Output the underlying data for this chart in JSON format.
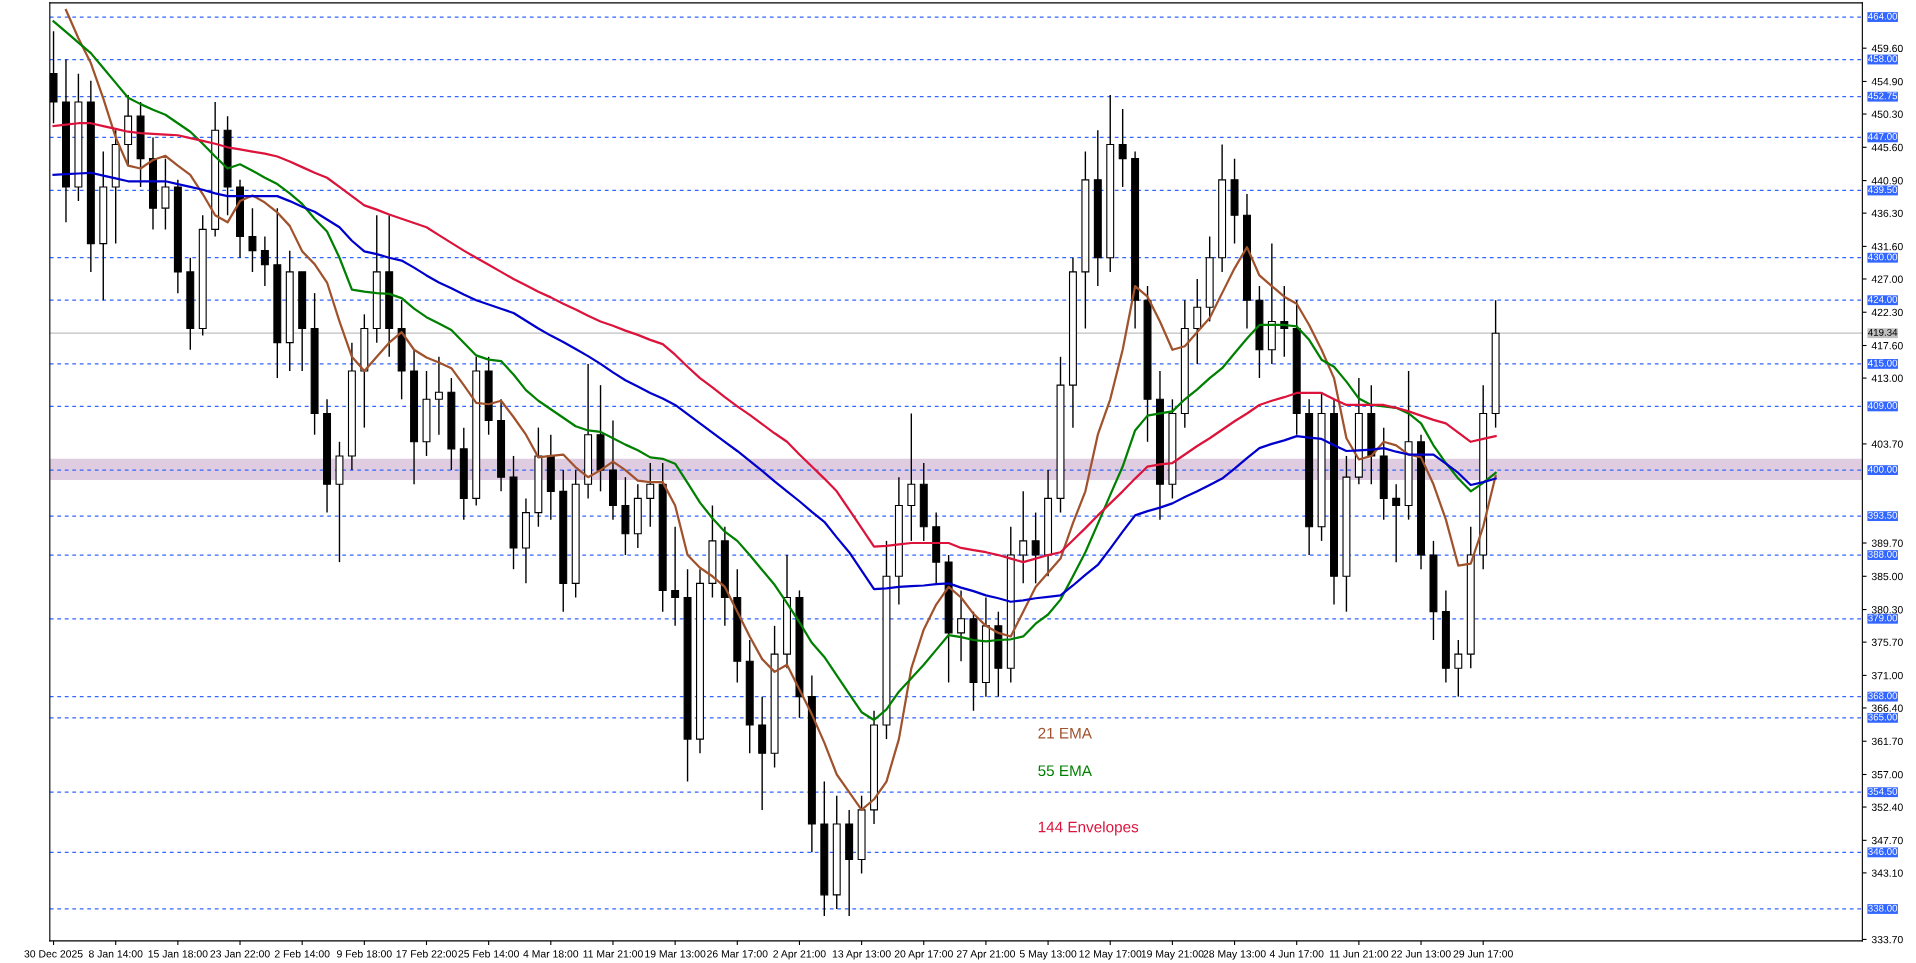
{
  "chart_data": {
    "type": "candlestick",
    "categories": [
      "30 Dec 2025",
      null,
      null,
      null,
      null,
      "8 Jan 14:00",
      null,
      null,
      null,
      null,
      "15 Jan 18:00",
      null,
      null,
      null,
      null,
      "23 Jan 22:00",
      null,
      null,
      null,
      null,
      "2 Feb 14:00",
      null,
      null,
      null,
      null,
      "9 Feb 18:00",
      null,
      null,
      null,
      null,
      "17 Feb 22:00",
      null,
      null,
      null,
      null,
      "25 Feb 14:00",
      null,
      null,
      null,
      null,
      "4 Mar 18:00",
      null,
      null,
      null,
      null,
      "11 Mar 21:00",
      null,
      null,
      null,
      null,
      "19 Mar 13:00",
      null,
      null,
      null,
      null,
      "26 Mar 17:00",
      null,
      null,
      null,
      null,
      "2 Apr 21:00",
      null,
      null,
      null,
      null,
      "13 Apr 13:00",
      null,
      null,
      null,
      null,
      "20 Apr 17:00",
      null,
      null,
      null,
      null,
      "27 Apr 21:00",
      null,
      null,
      null,
      null,
      "5 May 13:00",
      null,
      null,
      null,
      null,
      "12 May 17:00",
      null,
      null,
      null,
      null,
      "19 May 21:00",
      null,
      null,
      null,
      null,
      "28 May 13:00",
      null,
      null,
      null,
      null,
      "4 Jun 17:00",
      null,
      null,
      null,
      null,
      "11 Jun 21:00",
      null,
      null,
      null,
      null,
      "22 Jun 13:00",
      null,
      null,
      null,
      null,
      "29 Jun 17:00",
      null,
      null,
      null,
      null,
      null,
      null,
      null,
      null,
      null,
      null,
      null,
      null,
      null,
      null,
      null,
      null,
      null,
      null,
      null,
      null,
      null,
      null,
      null,
      null,
      null,
      null,
      null,
      null,
      null,
      null
    ],
    "ohlc": [
      [
        456,
        462,
        449,
        452
      ],
      [
        452,
        458,
        435,
        440
      ],
      [
        440,
        456,
        438,
        452
      ],
      [
        452,
        455,
        428,
        432
      ],
      [
        432,
        445,
        424,
        440
      ],
      [
        440,
        448,
        432,
        446
      ],
      [
        446,
        453,
        443,
        450
      ],
      [
        450,
        452,
        440,
        444
      ],
      [
        444,
        447,
        434,
        437
      ],
      [
        437,
        444,
        434,
        440
      ],
      [
        440,
        441,
        425,
        428
      ],
      [
        428,
        430,
        417,
        420
      ],
      [
        420,
        436,
        419,
        434
      ],
      [
        434,
        452,
        433,
        448
      ],
      [
        448,
        450,
        436,
        440
      ],
      [
        440,
        441,
        430,
        433
      ],
      [
        433,
        437,
        428,
        431
      ],
      [
        431,
        433,
        426,
        429
      ],
      [
        429,
        437,
        413,
        418
      ],
      [
        418,
        431,
        414,
        428
      ],
      [
        428,
        428,
        414,
        420
      ],
      [
        420,
        425,
        405,
        408
      ],
      [
        408,
        410,
        394,
        398
      ],
      [
        398,
        404,
        387,
        402
      ],
      [
        402,
        418,
        400,
        414
      ],
      [
        414,
        422,
        406,
        420
      ],
      [
        420,
        436,
        418,
        428
      ],
      [
        428,
        436,
        416,
        420
      ],
      [
        420,
        424,
        410,
        414
      ],
      [
        414,
        417,
        398,
        404
      ],
      [
        404,
        414,
        402,
        410
      ],
      [
        410,
        416,
        405,
        411
      ],
      [
        411,
        413,
        400,
        403
      ],
      [
        403,
        406,
        393,
        396
      ],
      [
        396,
        416,
        395,
        414
      ],
      [
        414,
        416,
        405,
        407
      ],
      [
        407,
        410,
        397,
        399
      ],
      [
        399,
        402,
        386,
        389
      ],
      [
        389,
        396,
        384,
        394
      ],
      [
        394,
        406,
        392,
        402
      ],
      [
        402,
        405,
        393,
        397
      ],
      [
        397,
        400,
        380,
        384
      ],
      [
        384,
        400,
        382,
        398
      ],
      [
        398,
        415,
        396,
        405
      ],
      [
        405,
        412,
        397,
        400
      ],
      [
        400,
        407,
        393,
        395
      ],
      [
        395,
        399,
        388,
        391
      ],
      [
        391,
        398,
        389,
        396
      ],
      [
        396,
        401,
        392,
        398
      ],
      [
        398,
        401,
        380,
        383
      ],
      [
        383,
        392,
        378,
        382
      ],
      [
        382,
        386,
        356,
        362
      ],
      [
        362,
        386,
        360,
        384
      ],
      [
        384,
        395,
        382,
        390
      ],
      [
        390,
        392,
        378,
        382
      ],
      [
        382,
        386,
        370,
        373
      ],
      [
        373,
        376,
        360,
        364
      ],
      [
        364,
        368,
        352,
        360
      ],
      [
        360,
        378,
        358,
        374
      ],
      [
        374,
        388,
        372,
        382
      ],
      [
        382,
        383,
        365,
        368
      ],
      [
        368,
        371,
        346,
        350
      ],
      [
        350,
        356,
        337,
        340
      ],
      [
        340,
        354,
        338,
        350
      ],
      [
        350,
        352,
        337,
        345
      ],
      [
        345,
        354,
        343,
        352
      ],
      [
        352,
        366,
        350,
        364
      ],
      [
        364,
        390,
        362,
        385
      ],
      [
        385,
        399,
        381,
        395
      ],
      [
        395,
        408,
        390,
        398
      ],
      [
        398,
        401,
        390,
        392
      ],
      [
        392,
        394,
        384,
        387
      ],
      [
        387,
        388,
        370,
        377
      ],
      [
        377,
        383,
        373,
        379
      ],
      [
        379,
        380,
        366,
        370
      ],
      [
        370,
        382,
        368,
        378
      ],
      [
        378,
        380,
        368,
        372
      ],
      [
        372,
        392,
        370,
        388
      ],
      [
        388,
        397,
        384,
        390
      ],
      [
        390,
        394,
        384,
        388
      ],
      [
        388,
        400,
        385,
        396
      ],
      [
        396,
        416,
        394,
        412
      ],
      [
        412,
        430,
        406,
        428
      ],
      [
        428,
        445,
        420,
        441
      ],
      [
        441,
        448,
        426,
        430
      ],
      [
        430,
        453,
        428,
        446
      ],
      [
        446,
        451,
        440,
        444
      ],
      [
        444,
        445,
        420,
        424
      ],
      [
        424,
        426,
        404,
        410
      ],
      [
        410,
        414,
        393,
        398
      ],
      [
        398,
        410,
        396,
        408
      ],
      [
        408,
        424,
        406,
        420
      ],
      [
        420,
        427,
        415,
        423
      ],
      [
        423,
        433,
        421,
        430
      ],
      [
        430,
        446,
        428,
        441
      ],
      [
        441,
        444,
        432,
        436
      ],
      [
        436,
        439,
        420,
        424
      ],
      [
        424,
        426,
        413,
        417
      ],
      [
        417,
        432,
        415,
        421
      ],
      [
        421,
        426,
        416,
        420
      ],
      [
        420,
        424,
        405,
        408
      ],
      [
        408,
        410,
        388,
        392
      ],
      [
        392,
        411,
        390,
        408
      ],
      [
        408,
        410,
        381,
        385
      ],
      [
        385,
        402,
        380,
        399
      ],
      [
        399,
        413,
        398,
        408
      ],
      [
        408,
        412,
        398,
        402
      ],
      [
        402,
        406,
        393,
        396
      ],
      [
        396,
        398,
        387,
        395
      ],
      [
        395,
        414,
        393,
        404
      ],
      [
        404,
        405,
        386,
        388
      ],
      [
        388,
        390,
        376,
        380
      ],
      [
        380,
        383,
        370,
        372
      ],
      [
        372,
        376,
        368,
        374
      ],
      [
        374,
        392,
        372,
        388
      ],
      [
        388,
        412,
        386,
        408
      ],
      [
        408,
        424,
        406,
        419.34
      ],
      null,
      null,
      null,
      null,
      null,
      null,
      null,
      null,
      null,
      null,
      null,
      null,
      null,
      null,
      null,
      null,
      null,
      null,
      null,
      null,
      null,
      null,
      null,
      null,
      null,
      null,
      null,
      null,
      null
    ],
    "series": [
      {
        "type": "line",
        "name": "21 EMA",
        "color": "#a0522d",
        "values": [
          null,
          465,
          461,
          457.5,
          452.5,
          447,
          443,
          442.6,
          443.8,
          444.4,
          443,
          441.7,
          439,
          436,
          435,
          438,
          438.8,
          437.8,
          436.4,
          434.5,
          430.9,
          429.1,
          426.5,
          421,
          416,
          414,
          416,
          418,
          419.5,
          417,
          415.9,
          415.2,
          414.4,
          412,
          409.5,
          409.3,
          409.8,
          407.5,
          405,
          401.8,
          402,
          402.2,
          400.4,
          399,
          400,
          401.2,
          400,
          398.5,
          398.3,
          398.3,
          395,
          388,
          386.2,
          385,
          383.5,
          380,
          376.5,
          373.3,
          371.5,
          372.5,
          369,
          365.5,
          361.5,
          357,
          354.5,
          352,
          353.5,
          356,
          362,
          372,
          377.5,
          381,
          383.5,
          382,
          379.7,
          378,
          377,
          376.5,
          380,
          383.5,
          385.5,
          387.5,
          392.5,
          397,
          405,
          410,
          417,
          426,
          424.5,
          421,
          417,
          417.5,
          419.5,
          421.5,
          425,
          428.5,
          431.5,
          427.5,
          426,
          424.5,
          423.5,
          420.5,
          417,
          413,
          404.5,
          401.5,
          402,
          404,
          403.5,
          402.2,
          401.8,
          398,
          393,
          386.5,
          386.8,
          392,
          399.2,
          null,
          null,
          null,
          null,
          null,
          null,
          null,
          null,
          null,
          null,
          null,
          null,
          null,
          null,
          null,
          null,
          null,
          null,
          null,
          null,
          null,
          null,
          null,
          null,
          null,
          null,
          null,
          null,
          null
        ]
      },
      {
        "type": "line",
        "name": "55 EMA",
        "color": "#008000",
        "values": [
          463.4,
          461.9,
          460.4,
          458.9,
          456.8,
          454.7,
          452.6,
          451.7,
          450.9,
          450.2,
          449,
          447.8,
          446.1,
          444.3,
          442.6,
          443.2,
          442.3,
          441.3,
          440.4,
          439.1,
          437.6,
          435.5,
          433.7,
          430,
          425.5,
          425.2,
          425,
          424.9,
          424.3,
          422.8,
          421.6,
          420.7,
          419.8,
          418,
          416.2,
          415.6,
          415.4,
          413.5,
          411.3,
          409.8,
          408.6,
          407.4,
          406.2,
          405.6,
          405.4,
          404.5,
          403.6,
          402.8,
          401.8,
          401.6,
          400.9,
          398.2,
          395.4,
          393.2,
          391.3,
          390,
          388,
          385.9,
          383.8,
          381.2,
          378.5,
          375.6,
          373.6,
          371,
          368.4,
          365.8,
          364.7,
          366.2,
          368.7,
          370.6,
          372.5,
          374.6,
          376.7,
          376.4,
          376,
          375.8,
          376,
          376.1,
          376.5,
          378.3,
          379.6,
          381.7,
          385,
          388.4,
          392.4,
          396.5,
          400.5,
          405.6,
          407.7,
          408,
          408.3,
          410,
          411.4,
          413,
          414.4,
          416.5,
          418.6,
          420.5,
          420.5,
          420.5,
          420.3,
          418.4,
          415.6,
          414.6,
          412.5,
          410.1,
          409.2,
          409,
          408.8,
          408,
          406.6,
          403.5,
          401,
          398.8,
          397,
          398.2,
          399.6,
          null,
          null,
          null,
          null,
          null,
          null,
          null,
          null,
          null,
          null,
          null,
          null,
          null,
          null,
          null,
          null,
          null,
          null,
          null,
          null,
          null,
          null,
          null,
          null,
          null,
          null,
          null,
          null,
          null
        ]
      },
      {
        "type": "line",
        "color": "#0000cd",
        "values": [
          441.7,
          441.8,
          441.9,
          442,
          441.6,
          441.2,
          440.8,
          440.8,
          440.8,
          440.8,
          440.4,
          440,
          439.6,
          439.1,
          438.7,
          438.7,
          438.7,
          438.7,
          438.7,
          438,
          437.2,
          436.5,
          435.4,
          434.3,
          432.4,
          430.9,
          430.5,
          430,
          429.6,
          428.6,
          427.5,
          426.5,
          425.7,
          424.8,
          424,
          423.4,
          422.8,
          422.2,
          421.1,
          420,
          419,
          418.1,
          417.1,
          416.1,
          415,
          413.8,
          412.7,
          411.8,
          410.9,
          410.1,
          409.2,
          407.9,
          406.6,
          405.3,
          404,
          402.7,
          401.3,
          399.9,
          398.4,
          397,
          395.6,
          394.1,
          392.7,
          390.5,
          388.4,
          385.8,
          383.2,
          383.3,
          383.5,
          383.6,
          383.7,
          383.9,
          384,
          383.4,
          382.9,
          382.3,
          381.9,
          381.4,
          381.6,
          381.9,
          382.1,
          382.3,
          383.7,
          385.2,
          386.6,
          388.9,
          391.3,
          393.6,
          394.2,
          394.7,
          395.3,
          396.2,
          397,
          397.9,
          398.8,
          400.2,
          401.7,
          403.1,
          403.7,
          404.2,
          404.8,
          404.6,
          404.4,
          403.5,
          402.7,
          402.8,
          402.9,
          403.1,
          402.6,
          402.2,
          402.2,
          402.2,
          400.9,
          399.6,
          397.9,
          398.3,
          398.8,
          null,
          null,
          null,
          null,
          null,
          null,
          null,
          null,
          null,
          null,
          null,
          null,
          null,
          null,
          null,
          null,
          null,
          null,
          null,
          null,
          null,
          null,
          null,
          null,
          null,
          null,
          null,
          null,
          null
        ]
      },
      {
        "type": "line",
        "name": "144 Envelopes",
        "color": "#dc143c",
        "values": [
          448.6,
          448.8,
          449,
          449,
          448.6,
          448.2,
          447.8,
          447.6,
          447.5,
          447.4,
          447.3,
          446.9,
          446.5,
          446.1,
          445.6,
          445.3,
          445,
          444.7,
          444.3,
          443.6,
          442.8,
          442,
          441.3,
          440,
          438.7,
          437.4,
          436.8,
          436.1,
          435.5,
          434.9,
          434.3,
          433.2,
          432.1,
          431,
          430,
          429,
          428,
          427,
          426.1,
          425.2,
          424.4,
          423.5,
          422.7,
          421.8,
          421,
          420.4,
          419.7,
          419.1,
          418.4,
          417.8,
          416.3,
          414.6,
          413,
          411.7,
          410.3,
          409,
          407.8,
          406.5,
          405.2,
          404,
          402.2,
          400.5,
          398.8,
          397,
          394.4,
          391.8,
          389.2,
          389.3,
          389.5,
          389.7,
          389.7,
          389.7,
          389.7,
          389,
          388.7,
          388.4,
          388,
          387.5,
          387,
          387.5,
          388,
          388.4,
          390.1,
          391.8,
          393.6,
          395.3,
          397,
          398.8,
          400.5,
          400.8,
          401,
          402.2,
          403.4,
          404.5,
          405.7,
          406.9,
          408,
          409.2,
          409.8,
          410.3,
          410.9,
          410.9,
          410.9,
          410,
          409.2,
          409.2,
          409.2,
          409.2,
          408.8,
          408.3,
          407.7,
          407.1,
          406.6,
          405.3,
          404,
          404.4,
          404.8,
          null,
          null,
          null,
          null,
          null,
          null,
          null,
          null,
          null,
          null,
          null,
          null,
          null,
          null,
          null,
          null,
          null,
          null,
          null,
          null,
          null,
          null,
          null,
          null,
          null,
          null,
          null,
          null,
          null
        ]
      }
    ],
    "ylim": [
      333.5,
      466.0
    ],
    "yticks": [
      {
        "value": 459.6,
        "label": "459.60"
      },
      {
        "value": 454.9,
        "label": "454.90"
      },
      {
        "value": 450.3,
        "label": "450.30"
      },
      {
        "value": 445.6,
        "label": "445.60"
      },
      {
        "value": 440.9,
        "label": "440.90"
      },
      {
        "value": 436.3,
        "label": "436.30"
      },
      {
        "value": 431.6,
        "label": "431.60"
      },
      {
        "value": 427,
        "label": "427.00"
      },
      {
        "value": 422.3,
        "label": "422.30"
      },
      {
        "value": 417.6,
        "label": "417.60"
      },
      {
        "value": 413,
        "label": "413.00"
      },
      {
        "value": 403.7,
        "label": "403.70"
      },
      {
        "value": 389.7,
        "label": "389.70"
      },
      {
        "value": 385,
        "label": "385.00"
      },
      {
        "value": 380.3,
        "label": "380.30"
      },
      {
        "value": 375.7,
        "label": "375.70"
      },
      {
        "value": 371,
        "label": "371.00"
      },
      {
        "value": 366.4,
        "label": "366.40"
      },
      {
        "value": 361.7,
        "label": "361.70"
      },
      {
        "value": 357,
        "label": "357.00"
      },
      {
        "value": 352.4,
        "label": "352.40"
      },
      {
        "value": 347.7,
        "label": "347.70"
      },
      {
        "value": 343.1,
        "label": "343.10"
      },
      {
        "value": 333.7,
        "label": "333.70"
      }
    ],
    "ref_lines": [
      {
        "axis": "y",
        "value": 464,
        "label": "464.00",
        "color": "#3366ff",
        "line_style": "dashed"
      },
      {
        "axis": "y",
        "value": 458,
        "label": "458.00",
        "color": "#3366ff",
        "line_style": "dashed"
      },
      {
        "axis": "y",
        "value": 452.75,
        "label": "452.75",
        "color": "#3366ff",
        "line_style": "dashed"
      },
      {
        "axis": "y",
        "value": 447,
        "label": "447.00",
        "color": "#3366ff",
        "line_style": "dashed"
      },
      {
        "axis": "y",
        "value": 439.5,
        "label": "439.50",
        "color": "#3366ff",
        "line_style": "dashed"
      },
      {
        "axis": "y",
        "value": 430,
        "label": "430.00",
        "color": "#3366ff",
        "line_style": "dashed"
      },
      {
        "axis": "y",
        "value": 424,
        "label": "424.00",
        "color": "#3366ff",
        "line_style": "dashed"
      },
      {
        "axis": "y",
        "value": 419.34,
        "label": "419.34",
        "color": "#c0c0c0",
        "line_style": "solid"
      },
      {
        "axis": "y",
        "value": 415,
        "label": "415.00",
        "color": "#3366ff",
        "line_style": "dashed"
      },
      {
        "axis": "y",
        "value": 409,
        "label": "409.00",
        "color": "#3366ff",
        "line_style": "dashed"
      },
      {
        "axis": "y",
        "value": 400,
        "label": "400.00",
        "color": "#3366ff",
        "line_style": "dashed"
      },
      {
        "axis": "y",
        "value": 393.5,
        "label": "393.50",
        "color": "#3366ff",
        "line_style": "dashed"
      },
      {
        "axis": "y",
        "value": 388,
        "label": "388.00",
        "color": "#3366ff",
        "line_style": "dashed"
      },
      {
        "axis": "y",
        "value": 379,
        "label": "379.00",
        "color": "#3366ff",
        "line_style": "dashed"
      },
      {
        "axis": "y",
        "value": 368,
        "label": "368.00",
        "color": "#3366ff",
        "line_style": "dashed"
      },
      {
        "axis": "y",
        "value": 365,
        "label": "365.00",
        "color": "#3366ff",
        "line_style": "dashed"
      },
      {
        "axis": "y",
        "value": 354.5,
        "label": "354.50",
        "color": "#3366ff",
        "line_style": "dashed"
      },
      {
        "axis": "y",
        "value": 346,
        "label": "346.00",
        "color": "#3366ff",
        "line_style": "dashed"
      },
      {
        "axis": "y",
        "value": 338,
        "label": "338.00",
        "color": "#3366ff",
        "line_style": "dashed"
      }
    ],
    "bands": [
      {
        "axis": "y",
        "from": 398.6,
        "to": 401.6,
        "color": "#d8bfd8"
      }
    ],
    "grid": false
  }
}
